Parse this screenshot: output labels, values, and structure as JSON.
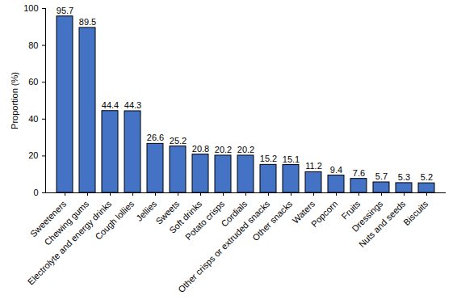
{
  "chart_data": {
    "type": "bar",
    "y_label": "Proportion (%)",
    "categories": [
      "Sweeteners",
      "Chewing gums",
      "Electrolyte and energy drinks",
      "Cough lollies",
      "Jellies",
      "Sweets",
      "Soft drinks",
      "Potato crisps",
      "Cordials",
      "Other crisps or extruded snacks",
      "Other snacks",
      "Waters",
      "Popcorn",
      "Fruits",
      "Dressings",
      "Nuts and seeds",
      "Biscuits"
    ],
    "values": [
      95.7,
      89.5,
      44.4,
      44.3,
      26.6,
      25.2,
      20.8,
      20.2,
      20.2,
      15.2,
      15.1,
      11.2,
      9.4,
      7.6,
      5.7,
      5.3,
      5.2
    ],
    "color": "#4472c4",
    "ylim": [
      0,
      100
    ],
    "yticks": [
      0,
      20,
      40,
      60,
      80,
      100
    ],
    "grid": false,
    "data_labels": true
  }
}
